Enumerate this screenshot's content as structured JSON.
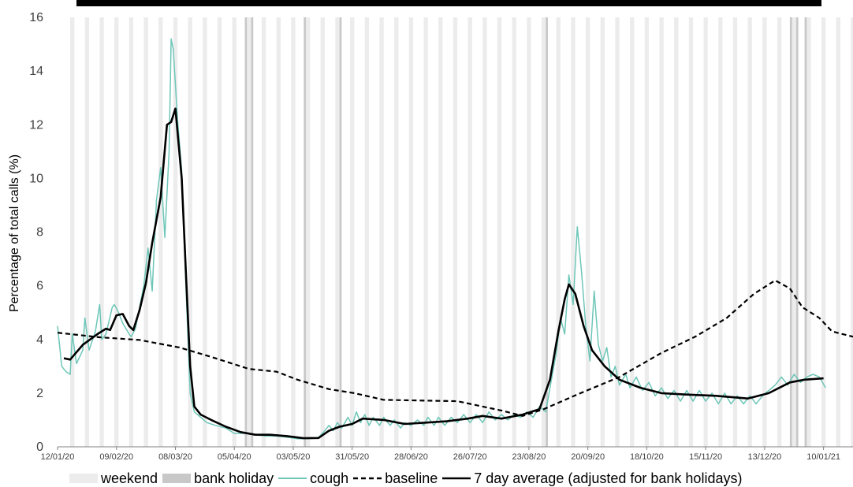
{
  "chart_data": {
    "type": "line",
    "title": "",
    "xlabel": "",
    "ylabel": "Percentage of total calls (%)",
    "ylim": [
      0,
      16
    ],
    "yticks": [
      "0",
      "2",
      "4",
      "6",
      "8",
      "10",
      "12",
      "14",
      "16"
    ],
    "xlim": [
      "2020-01-12",
      "2021-01-24"
    ],
    "xticks": [
      "12/01/20",
      "09/02/20",
      "08/03/20",
      "05/04/20",
      "03/05/20",
      "31/05/20",
      "28/06/20",
      "26/07/20",
      "23/08/20",
      "20/09/20",
      "18/10/20",
      "15/11/20",
      "13/12/20",
      "10/01/21"
    ],
    "grid": false,
    "legend_position": "bottom",
    "legend": [
      {
        "label": "weekend",
        "kind": "band",
        "color": "#ececec"
      },
      {
        "label": "bank holiday",
        "kind": "band",
        "color": "#c8c8c8"
      },
      {
        "label": "cough",
        "kind": "line",
        "color": "#6ec6b8"
      },
      {
        "label": "baseline",
        "kind": "dashed",
        "color": "#000000"
      },
      {
        "label": "7 day average (adjusted for bank holidays)",
        "kind": "line",
        "color": "#000000"
      }
    ],
    "bank_holidays": [
      "2020-04-10",
      "2020-04-13",
      "2020-05-08",
      "2020-05-25",
      "2020-08-31",
      "2020-12-25",
      "2020-12-28",
      "2021-01-01"
    ],
    "series": [
      {
        "name": "cough",
        "color": "#6ec6b8",
        "points": [
          [
            "2020-01-12",
            4.5
          ],
          [
            "2020-01-14",
            3.0
          ],
          [
            "2020-01-16",
            2.8
          ],
          [
            "2020-01-18",
            2.7
          ],
          [
            "2020-01-19",
            4.2
          ],
          [
            "2020-01-21",
            3.1
          ],
          [
            "2020-01-24",
            3.6
          ],
          [
            "2020-01-25",
            4.8
          ],
          [
            "2020-01-27",
            3.6
          ],
          [
            "2020-01-30",
            4.3
          ],
          [
            "2020-02-01",
            5.3
          ],
          [
            "2020-02-02",
            4.0
          ],
          [
            "2020-02-04",
            4.2
          ],
          [
            "2020-02-07",
            5.2
          ],
          [
            "2020-02-08",
            5.3
          ],
          [
            "2020-02-10",
            5.0
          ],
          [
            "2020-02-12",
            4.6
          ],
          [
            "2020-02-15",
            4.2
          ],
          [
            "2020-02-16",
            4.1
          ],
          [
            "2020-02-18",
            4.4
          ],
          [
            "2020-02-20",
            5.2
          ],
          [
            "2020-02-22",
            6.0
          ],
          [
            "2020-02-24",
            7.4
          ],
          [
            "2020-02-26",
            5.8
          ],
          [
            "2020-02-28",
            9.2
          ],
          [
            "2020-03-01",
            10.4
          ],
          [
            "2020-03-03",
            7.8
          ],
          [
            "2020-03-05",
            11.0
          ],
          [
            "2020-03-06",
            15.2
          ],
          [
            "2020-03-07",
            14.8
          ],
          [
            "2020-03-09",
            12.2
          ],
          [
            "2020-03-11",
            10.3
          ],
          [
            "2020-03-13",
            6.0
          ],
          [
            "2020-03-15",
            2.0
          ],
          [
            "2020-03-17",
            1.3
          ],
          [
            "2020-03-20",
            1.1
          ],
          [
            "2020-03-23",
            0.9
          ],
          [
            "2020-03-27",
            0.8
          ],
          [
            "2020-04-01",
            0.7
          ],
          [
            "2020-04-05",
            0.5
          ],
          [
            "2020-04-10",
            0.5
          ],
          [
            "2020-04-15",
            0.45
          ],
          [
            "2020-04-20",
            0.4
          ],
          [
            "2020-04-25",
            0.4
          ],
          [
            "2020-05-01",
            0.35
          ],
          [
            "2020-05-05",
            0.3
          ],
          [
            "2020-05-10",
            0.3
          ],
          [
            "2020-05-15",
            0.35
          ],
          [
            "2020-05-18",
            0.6
          ],
          [
            "2020-05-20",
            0.8
          ],
          [
            "2020-05-22",
            0.6
          ],
          [
            "2020-05-24",
            0.9
          ],
          [
            "2020-05-26",
            0.7
          ],
          [
            "2020-05-29",
            1.1
          ],
          [
            "2020-05-31",
            0.8
          ],
          [
            "2020-06-02",
            1.3
          ],
          [
            "2020-06-04",
            0.9
          ],
          [
            "2020-06-06",
            1.2
          ],
          [
            "2020-06-08",
            0.8
          ],
          [
            "2020-06-10",
            1.1
          ],
          [
            "2020-06-13",
            0.8
          ],
          [
            "2020-06-15",
            1.1
          ],
          [
            "2020-06-18",
            0.8
          ],
          [
            "2020-06-20",
            1.0
          ],
          [
            "2020-06-23",
            0.7
          ],
          [
            "2020-06-25",
            0.9
          ],
          [
            "2020-06-28",
            0.8
          ],
          [
            "2020-07-01",
            1.0
          ],
          [
            "2020-07-04",
            0.8
          ],
          [
            "2020-07-06",
            1.1
          ],
          [
            "2020-07-09",
            0.8
          ],
          [
            "2020-07-11",
            1.1
          ],
          [
            "2020-07-14",
            0.8
          ],
          [
            "2020-07-17",
            1.1
          ],
          [
            "2020-07-20",
            0.9
          ],
          [
            "2020-07-23",
            1.2
          ],
          [
            "2020-07-26",
            0.9
          ],
          [
            "2020-07-29",
            1.2
          ],
          [
            "2020-08-01",
            0.9
          ],
          [
            "2020-08-04",
            1.3
          ],
          [
            "2020-08-07",
            1.0
          ],
          [
            "2020-08-10",
            1.2
          ],
          [
            "2020-08-13",
            1.0
          ],
          [
            "2020-08-16",
            1.2
          ],
          [
            "2020-08-19",
            1.1
          ],
          [
            "2020-08-22",
            1.3
          ],
          [
            "2020-08-25",
            1.1
          ],
          [
            "2020-08-28",
            1.5
          ],
          [
            "2020-08-31",
            1.3
          ],
          [
            "2020-09-02",
            2.2
          ],
          [
            "2020-09-05",
            3.5
          ],
          [
            "2020-09-07",
            4.8
          ],
          [
            "2020-09-09",
            4.2
          ],
          [
            "2020-09-11",
            6.4
          ],
          [
            "2020-09-13",
            5.3
          ],
          [
            "2020-09-15",
            8.2
          ],
          [
            "2020-09-17",
            6.5
          ],
          [
            "2020-09-19",
            4.5
          ],
          [
            "2020-09-21",
            3.2
          ],
          [
            "2020-09-23",
            5.8
          ],
          [
            "2020-09-25",
            3.8
          ],
          [
            "2020-09-27",
            3.2
          ],
          [
            "2020-09-29",
            3.7
          ],
          [
            "2020-10-01",
            2.6
          ],
          [
            "2020-10-03",
            3.0
          ],
          [
            "2020-10-05",
            2.3
          ],
          [
            "2020-10-08",
            2.7
          ],
          [
            "2020-10-10",
            2.2
          ],
          [
            "2020-10-13",
            2.6
          ],
          [
            "2020-10-16",
            2.1
          ],
          [
            "2020-10-19",
            2.4
          ],
          [
            "2020-10-22",
            1.9
          ],
          [
            "2020-10-25",
            2.2
          ],
          [
            "2020-10-28",
            1.8
          ],
          [
            "2020-10-31",
            2.1
          ],
          [
            "2020-11-03",
            1.7
          ],
          [
            "2020-11-06",
            2.1
          ],
          [
            "2020-11-09",
            1.7
          ],
          [
            "2020-11-12",
            2.1
          ],
          [
            "2020-11-15",
            1.7
          ],
          [
            "2020-11-18",
            2.0
          ],
          [
            "2020-11-21",
            1.6
          ],
          [
            "2020-11-24",
            2.0
          ],
          [
            "2020-11-27",
            1.6
          ],
          [
            "2020-11-30",
            1.9
          ],
          [
            "2020-12-03",
            1.6
          ],
          [
            "2020-12-06",
            1.9
          ],
          [
            "2020-12-09",
            1.6
          ],
          [
            "2020-12-12",
            1.9
          ],
          [
            "2020-12-15",
            2.1
          ],
          [
            "2020-12-18",
            2.3
          ],
          [
            "2020-12-21",
            2.6
          ],
          [
            "2020-12-24",
            2.3
          ],
          [
            "2020-12-27",
            2.7
          ],
          [
            "2020-12-30",
            2.4
          ],
          [
            "2021-01-02",
            2.6
          ],
          [
            "2021-01-05",
            2.7
          ],
          [
            "2021-01-08",
            2.6
          ],
          [
            "2021-01-11",
            2.2
          ]
        ]
      },
      {
        "name": "baseline",
        "color": "#000000",
        "dash": true,
        "points": [
          [
            "2020-01-12",
            4.25
          ],
          [
            "2020-02-01",
            4.08
          ],
          [
            "2020-02-20",
            3.98
          ],
          [
            "2020-03-10",
            3.7
          ],
          [
            "2020-03-25",
            3.35
          ],
          [
            "2020-04-12",
            2.9
          ],
          [
            "2020-04-25",
            2.8
          ],
          [
            "2020-05-05",
            2.5
          ],
          [
            "2020-05-20",
            2.15
          ],
          [
            "2020-06-01",
            2.0
          ],
          [
            "2020-06-15",
            1.75
          ],
          [
            "2020-07-20",
            1.7
          ],
          [
            "2020-08-10",
            1.35
          ],
          [
            "2020-08-20",
            1.15
          ],
          [
            "2020-08-30",
            1.4
          ],
          [
            "2020-09-15",
            1.95
          ],
          [
            "2020-10-05",
            2.6
          ],
          [
            "2020-10-25",
            3.5
          ],
          [
            "2020-11-10",
            4.1
          ],
          [
            "2020-11-25",
            4.8
          ],
          [
            "2020-12-08",
            5.7
          ],
          [
            "2020-12-18",
            6.2
          ],
          [
            "2020-12-25",
            5.9
          ],
          [
            "2020-12-31",
            5.2
          ],
          [
            "2021-01-08",
            4.8
          ],
          [
            "2021-01-14",
            4.3
          ],
          [
            "2021-01-24",
            4.1
          ]
        ]
      },
      {
        "name": "7 day average (adjusted for bank holidays)",
        "color": "#000000",
        "points": [
          [
            "2020-01-15",
            3.3
          ],
          [
            "2020-01-18",
            3.25
          ],
          [
            "2020-01-24",
            3.8
          ],
          [
            "2020-01-31",
            4.2
          ],
          [
            "2020-02-04",
            4.4
          ],
          [
            "2020-02-06",
            4.35
          ],
          [
            "2020-02-09",
            4.9
          ],
          [
            "2020-02-12",
            4.95
          ],
          [
            "2020-02-15",
            4.5
          ],
          [
            "2020-02-17",
            4.35
          ],
          [
            "2020-02-20",
            5.1
          ],
          [
            "2020-02-23",
            6.1
          ],
          [
            "2020-02-26",
            7.6
          ],
          [
            "2020-03-01",
            9.3
          ],
          [
            "2020-03-04",
            12.0
          ],
          [
            "2020-03-06",
            12.1
          ],
          [
            "2020-03-08",
            12.6
          ],
          [
            "2020-03-11",
            10.0
          ],
          [
            "2020-03-13",
            6.5
          ],
          [
            "2020-03-15",
            3.0
          ],
          [
            "2020-03-17",
            1.5
          ],
          [
            "2020-03-20",
            1.2
          ],
          [
            "2020-03-25",
            1.0
          ],
          [
            "2020-04-01",
            0.75
          ],
          [
            "2020-04-08",
            0.55
          ],
          [
            "2020-04-15",
            0.45
          ],
          [
            "2020-04-22",
            0.45
          ],
          [
            "2020-04-30",
            0.4
          ],
          [
            "2020-05-08",
            0.32
          ],
          [
            "2020-05-15",
            0.33
          ],
          [
            "2020-05-20",
            0.6
          ],
          [
            "2020-05-25",
            0.75
          ],
          [
            "2020-05-31",
            0.85
          ],
          [
            "2020-06-05",
            1.05
          ],
          [
            "2020-06-15",
            1.0
          ],
          [
            "2020-06-25",
            0.85
          ],
          [
            "2020-07-05",
            0.9
          ],
          [
            "2020-07-15",
            0.95
          ],
          [
            "2020-07-25",
            1.05
          ],
          [
            "2020-08-01",
            1.15
          ],
          [
            "2020-08-10",
            1.05
          ],
          [
            "2020-08-20",
            1.2
          ],
          [
            "2020-08-28",
            1.4
          ],
          [
            "2020-09-02",
            2.5
          ],
          [
            "2020-09-06",
            4.3
          ],
          [
            "2020-09-09",
            5.5
          ],
          [
            "2020-09-11",
            6.05
          ],
          [
            "2020-09-14",
            5.7
          ],
          [
            "2020-09-18",
            4.5
          ],
          [
            "2020-09-22",
            3.6
          ],
          [
            "2020-09-28",
            3.0
          ],
          [
            "2020-10-05",
            2.5
          ],
          [
            "2020-10-15",
            2.2
          ],
          [
            "2020-10-25",
            2.0
          ],
          [
            "2020-11-05",
            1.95
          ],
          [
            "2020-11-20",
            1.9
          ],
          [
            "2020-12-05",
            1.8
          ],
          [
            "2020-12-15",
            2.0
          ],
          [
            "2020-12-25",
            2.4
          ],
          [
            "2021-01-01",
            2.5
          ],
          [
            "2021-01-10",
            2.55
          ]
        ]
      }
    ]
  }
}
